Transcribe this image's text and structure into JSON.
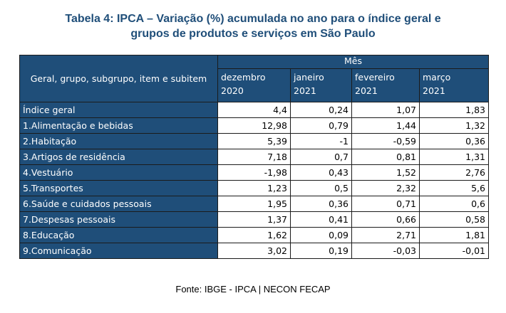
{
  "title_line1": "Tabela 4: IPCA – Variação (%) acumulada no ano para o índice geral e",
  "title_line2": "grupos de produtos e serviços em São Paulo",
  "header": {
    "row_label": "Geral, grupo, subgrupo, item e subitem",
    "group": "Mês",
    "months": [
      {
        "line1": "dezembro",
        "line2": "2020"
      },
      {
        "line1": "janeiro",
        "line2": "2021"
      },
      {
        "line1": "fevereiro",
        "line2": "2021"
      },
      {
        "line1": "março",
        "line2": "2021"
      }
    ]
  },
  "rows": [
    {
      "label": "Índice geral",
      "values": [
        "4,4",
        "0,24",
        "1,07",
        "1,83"
      ]
    },
    {
      "label": "1.Alimentação e bebidas",
      "values": [
        "12,98",
        "0,79",
        "1,44",
        "1,32"
      ]
    },
    {
      "label": "2.Habitação",
      "values": [
        "5,39",
        "-1",
        "-0,59",
        "0,36"
      ]
    },
    {
      "label": "3.Artigos de residência",
      "values": [
        "7,18",
        "0,7",
        "0,81",
        "1,31"
      ]
    },
    {
      "label": "4.Vestuário",
      "values": [
        "-1,98",
        "0,43",
        "1,52",
        "2,76"
      ]
    },
    {
      "label": "5.Transportes",
      "values": [
        "1,23",
        "0,5",
        "2,32",
        "5,6"
      ]
    },
    {
      "label": "6.Saúde e cuidados pessoais",
      "values": [
        "1,95",
        "0,36",
        "0,71",
        "0,6"
      ]
    },
    {
      "label": "7.Despesas pessoais",
      "values": [
        "1,37",
        "0,41",
        "0,66",
        "0,58"
      ]
    },
    {
      "label": "8.Educação",
      "values": [
        "1,62",
        "0,09",
        "2,71",
        "1,81"
      ]
    },
    {
      "label": "9.Comunicação",
      "values": [
        "3,02",
        "0,19",
        "-0,03",
        "-0,01"
      ]
    }
  ],
  "source": "Fonte: IBGE - IPCA | NECON FECAP"
}
